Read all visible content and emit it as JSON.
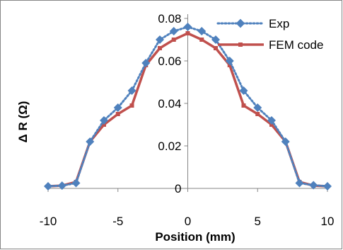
{
  "chart_data": {
    "type": "line",
    "title": "",
    "xlabel": "Position (mm)",
    "ylabel": "Δ R (Ω)",
    "xlim": [
      -10,
      10
    ],
    "ylim": [
      0,
      0.08
    ],
    "x_ticks": [
      -10,
      -5,
      0,
      5,
      10
    ],
    "y_ticks": [
      0,
      0.02,
      0.04,
      0.06,
      0.08
    ],
    "x_tick_labels": [
      "-10",
      "-5",
      "0",
      "5",
      "10"
    ],
    "y_tick_labels": [
      "0",
      "0.02",
      "0.04",
      "0.06",
      "0.08"
    ],
    "grid": false,
    "legend_position": "top-right",
    "series": [
      {
        "name": "Exp",
        "style": "dotted-diamond",
        "color": "#4F81BD",
        "x": [
          -10,
          -9,
          -8,
          -7,
          -6,
          -5,
          -4,
          -3,
          -2,
          -1,
          0,
          1,
          2,
          3,
          4,
          5,
          6,
          7,
          8,
          9,
          10
        ],
        "y": [
          0.001,
          0.0013,
          0.0025,
          0.022,
          0.032,
          0.038,
          0.046,
          0.059,
          0.07,
          0.074,
          0.076,
          0.074,
          0.07,
          0.06,
          0.046,
          0.038,
          0.032,
          0.022,
          0.0025,
          0.0015,
          0.001
        ]
      },
      {
        "name": "FEM code",
        "style": "solid-square",
        "color": "#C0504D",
        "x": [
          -10,
          -9,
          -8,
          -7,
          -6,
          -5,
          -4,
          -3,
          -2,
          -1,
          0,
          1,
          2,
          3,
          4,
          5,
          6,
          7,
          8,
          9,
          10
        ],
        "y": [
          0.001,
          0.0013,
          0.003,
          0.022,
          0.03,
          0.035,
          0.039,
          0.058,
          0.066,
          0.07,
          0.073,
          0.07,
          0.066,
          0.058,
          0.039,
          0.035,
          0.03,
          0.022,
          0.003,
          0.0013,
          0.001
        ]
      }
    ]
  }
}
